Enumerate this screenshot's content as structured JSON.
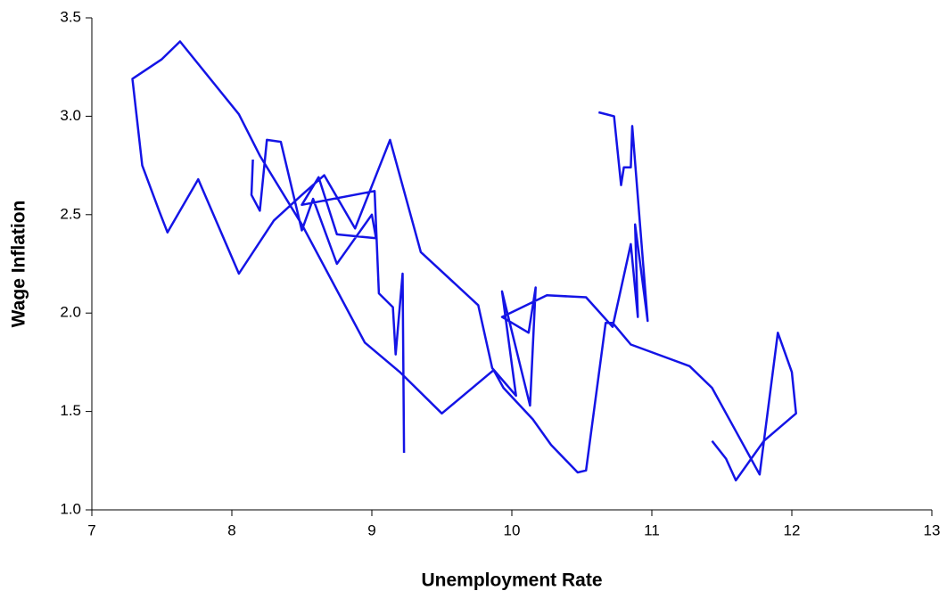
{
  "chart_data": {
    "type": "line",
    "x_label": "Unemployment Rate",
    "y_label": "Wage Inflation",
    "xlim": [
      7,
      13
    ],
    "ylim": [
      1,
      3.5
    ],
    "xticks": [
      7,
      8,
      9,
      10,
      11,
      12,
      13
    ],
    "yticks": [
      {
        "value": 1,
        "label": "1.0"
      },
      1.5,
      {
        "value": 2,
        "label": "2.0"
      },
      2.5,
      {
        "value": 3,
        "label": "3.0"
      },
      3.5
    ],
    "grid": false,
    "series": [
      {
        "color": "#1414e6",
        "x": [
          11.43,
          11.53,
          11.6,
          11.8,
          12.03,
          12.0,
          11.9,
          11.77,
          11.6,
          11.43,
          11.27,
          10.85,
          10.72,
          10.67,
          10.53,
          10.47,
          10.28,
          10.15,
          9.94,
          9.87,
          9.5,
          9.2,
          8.95,
          8.5,
          8.2,
          8.05,
          7.63,
          7.5,
          7.29,
          7.36,
          7.48,
          7.54,
          7.76,
          8.05,
          8.3,
          8.5,
          8.66,
          8.88,
          9.13,
          9.35,
          9.76,
          9.86,
          10.03,
          9.93,
          10.13,
          10.17,
          10.12,
          9.93,
          10.25,
          10.53,
          10.72,
          10.85,
          10.9,
          10.88,
          10.97,
          10.86,
          10.85,
          10.8,
          10.78,
          10.73,
          10.62,
          null,
          8.15,
          8.14,
          8.2,
          8.25,
          8.35,
          8.5,
          8.58,
          8.75,
          9.0,
          9.03,
          8.75,
          8.62,
          8.5,
          9.02,
          9.05,
          9.15,
          9.17,
          9.22,
          9.23
        ],
        "values": [
          1.35,
          1.26,
          1.15,
          1.35,
          1.49,
          1.7,
          1.9,
          1.18,
          1.4,
          1.62,
          1.73,
          1.84,
          1.95,
          1.95,
          1.2,
          1.19,
          1.33,
          1.46,
          1.62,
          1.71,
          1.49,
          1.7,
          1.85,
          2.45,
          2.8,
          3.01,
          3.38,
          3.29,
          3.19,
          2.75,
          2.52,
          2.41,
          2.68,
          2.2,
          2.47,
          2.6,
          2.7,
          2.43,
          2.88,
          2.31,
          2.04,
          1.72,
          1.58,
          2.11,
          1.53,
          2.13,
          1.9,
          1.98,
          2.09,
          2.08,
          1.93,
          2.35,
          1.98,
          2.45,
          1.96,
          2.95,
          2.74,
          2.74,
          2.65,
          3.0,
          3.02,
          null,
          2.78,
          2.6,
          2.52,
          2.88,
          2.87,
          2.42,
          2.58,
          2.25,
          2.5,
          2.38,
          2.4,
          2.69,
          2.55,
          2.62,
          2.1,
          2.03,
          1.79,
          2.2,
          1.29
        ]
      }
    ]
  }
}
